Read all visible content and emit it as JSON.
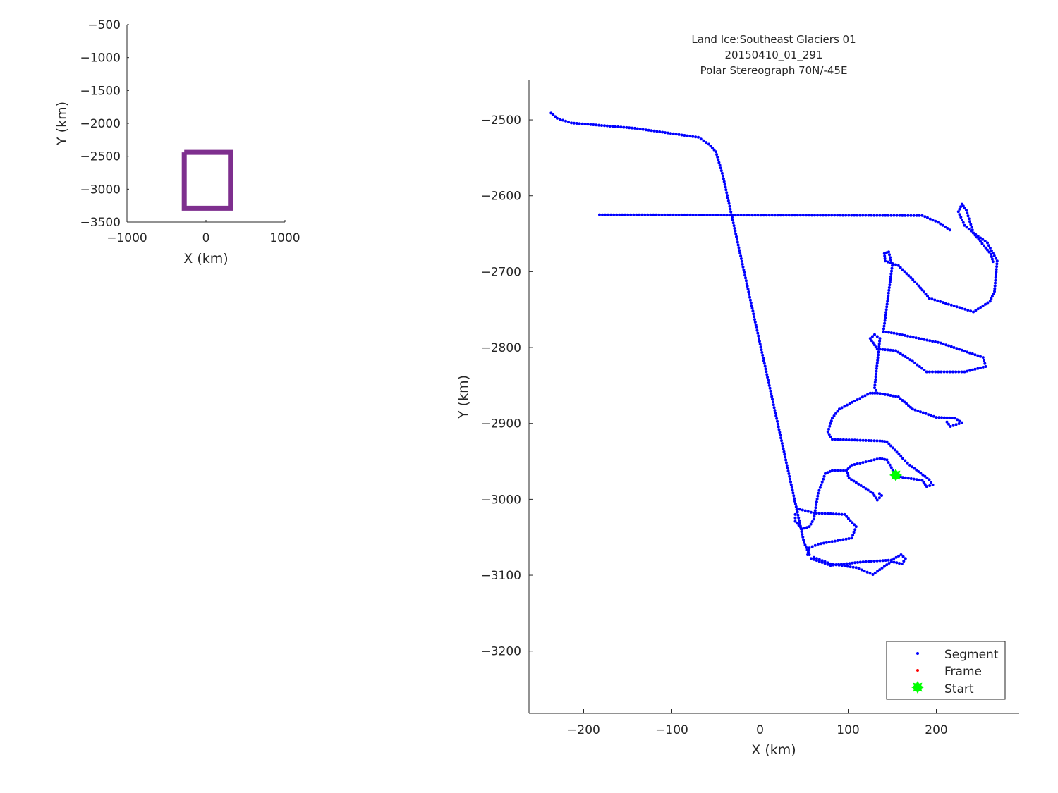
{
  "chart_data": [
    {
      "type": "line",
      "xlabel": "X (km)",
      "ylabel": "Y (km)",
      "xlim": [
        -1000,
        1000
      ],
      "ylim": [
        -3500,
        -500
      ],
      "xticks": [
        "−1000",
        "0",
        "1000"
      ],
      "xtick_values": [
        -1000,
        0,
        1000
      ],
      "yticks": [
        "−500",
        "−1000",
        "−1500",
        "−2000",
        "−2500",
        "−3000",
        "−3500"
      ],
      "ytick_values": [
        -500,
        -1000,
        -1500,
        -2000,
        -2500,
        -3000,
        -3500
      ],
      "grid": false,
      "color": "#7e2f8e",
      "series": [
        {
          "points": [
            [
              -275,
              -2440
            ],
            [
              310,
              -2440
            ],
            [
              310,
              -3290
            ],
            [
              -275,
              -3290
            ],
            [
              -275,
              -2440
            ]
          ]
        }
      ]
    },
    {
      "type": "scatter",
      "title": [
        "Land Ice:Southeast Glaciers 01",
        "20150410_01_291",
        "Polar Stereograph 70N/-45E"
      ],
      "xlabel": "X (km)",
      "ylabel": "Y (km)",
      "xlim": [
        -262,
        294
      ],
      "ylim": [
        -3282,
        -2447
      ],
      "xticks": [
        "−200",
        "−100",
        "0",
        "100",
        "200"
      ],
      "xtick_values": [
        -200,
        -100,
        0,
        100,
        200
      ],
      "yticks": [
        "−2500",
        "−2600",
        "−2700",
        "−2800",
        "−2900",
        "−3000",
        "−3100",
        "−3200"
      ],
      "ytick_values": [
        -2500,
        -2600,
        -2700,
        -2800,
        -2900,
        -3000,
        -3100,
        -3200
      ],
      "grid": false,
      "legend": {
        "position": "bottom-right",
        "entries": [
          {
            "label": "Segment",
            "color": "#0000ff",
            "marker": "dot"
          },
          {
            "label": "Frame",
            "color": "#ff0000",
            "marker": "dot"
          },
          {
            "label": "Start",
            "color": "#00ff00",
            "marker": "star"
          }
        ]
      },
      "segment_color": "#0000ff",
      "start_color": "#00ff00",
      "start_point": [
        154,
        -2968
      ],
      "segment_tracks": [
        [
          [
            -237,
            -2491
          ],
          [
            -230,
            -2498
          ],
          [
            -214,
            -2504
          ],
          [
            -142,
            -2511
          ],
          [
            -70,
            -2523
          ],
          [
            -58,
            -2532
          ],
          [
            -50,
            -2542
          ],
          [
            -42,
            -2574
          ],
          [
            50,
            -3057
          ],
          [
            56,
            -3073
          ],
          [
            58,
            -3078
          ],
          [
            80,
            -3087
          ],
          [
            120,
            -3082
          ],
          [
            149,
            -3080
          ],
          [
            160,
            -3073
          ],
          [
            165,
            -3078
          ],
          [
            161,
            -3085
          ],
          [
            149,
            -3082
          ],
          [
            128,
            -3099
          ],
          [
            109,
            -3090
          ],
          [
            80,
            -3085
          ],
          [
            58,
            -3075
          ]
        ],
        [
          [
            54,
            -3073
          ],
          [
            56,
            -3064
          ],
          [
            66,
            -3059
          ],
          [
            104,
            -3051
          ],
          [
            109,
            -3036
          ],
          [
            96,
            -3020
          ],
          [
            61,
            -3018
          ],
          [
            45,
            -3013
          ],
          [
            40,
            -3020
          ],
          [
            40,
            -3029
          ],
          [
            48,
            -3039
          ],
          [
            56,
            -3036
          ],
          [
            61,
            -3026
          ],
          [
            66,
            -2992
          ],
          [
            74,
            -2966
          ],
          [
            82,
            -2962
          ],
          [
            98,
            -2962
          ],
          [
            104,
            -2955
          ],
          [
            136,
            -2946
          ],
          [
            144,
            -2948
          ],
          [
            149,
            -2958
          ],
          [
            154,
            -2968
          ]
        ],
        [
          [
            98,
            -2962
          ],
          [
            101,
            -2972
          ],
          [
            120,
            -2986
          ],
          [
            128,
            -2992
          ],
          [
            133,
            -3001
          ],
          [
            138,
            -2995
          ],
          [
            133,
            -2990
          ]
        ],
        [
          [
            154,
            -2968
          ],
          [
            162,
            -2971
          ],
          [
            184,
            -2975
          ],
          [
            189,
            -2983
          ],
          [
            196,
            -2981
          ],
          [
            192,
            -2974
          ],
          [
            170,
            -2955
          ],
          [
            162,
            -2946
          ],
          [
            144,
            -2924
          ],
          [
            136,
            -2923
          ],
          [
            82,
            -2921
          ],
          [
            77,
            -2911
          ],
          [
            82,
            -2893
          ],
          [
            90,
            -2881
          ],
          [
            125,
            -2860
          ],
          [
            133,
            -2860
          ],
          [
            157,
            -2865
          ],
          [
            173,
            -2881
          ],
          [
            200,
            -2892
          ],
          [
            221,
            -2893
          ],
          [
            229,
            -2899
          ],
          [
            216,
            -2904
          ],
          [
            210,
            -2895
          ]
        ],
        [
          [
            133,
            -2860
          ],
          [
            130,
            -2853
          ],
          [
            136,
            -2788
          ],
          [
            130,
            -2783
          ],
          [
            125,
            -2788
          ],
          [
            133,
            -2802
          ],
          [
            154,
            -2804
          ],
          [
            173,
            -2818
          ],
          [
            189,
            -2832
          ],
          [
            232,
            -2832
          ],
          [
            256,
            -2825
          ],
          [
            253,
            -2813
          ],
          [
            205,
            -2794
          ],
          [
            152,
            -2781
          ],
          [
            140,
            -2779
          ],
          [
            150,
            -2692
          ],
          [
            146,
            -2674
          ],
          [
            141,
            -2676
          ],
          [
            142,
            -2686
          ],
          [
            157,
            -2692
          ],
          [
            178,
            -2716
          ],
          [
            192,
            -2735
          ],
          [
            242,
            -2753
          ],
          [
            261,
            -2739
          ],
          [
            266,
            -2726
          ],
          [
            269,
            -2686
          ],
          [
            258,
            -2662
          ],
          [
            242,
            -2649
          ],
          [
            232,
            -2639
          ],
          [
            225,
            -2621
          ],
          [
            229,
            -2611
          ],
          [
            234,
            -2619
          ],
          [
            242,
            -2649
          ],
          [
            262,
            -2677
          ],
          [
            265,
            -2690
          ]
        ],
        [
          [
            -182,
            -2625
          ],
          [
            184,
            -2626
          ],
          [
            202,
            -2635
          ],
          [
            218,
            -2647
          ]
        ]
      ]
    }
  ]
}
